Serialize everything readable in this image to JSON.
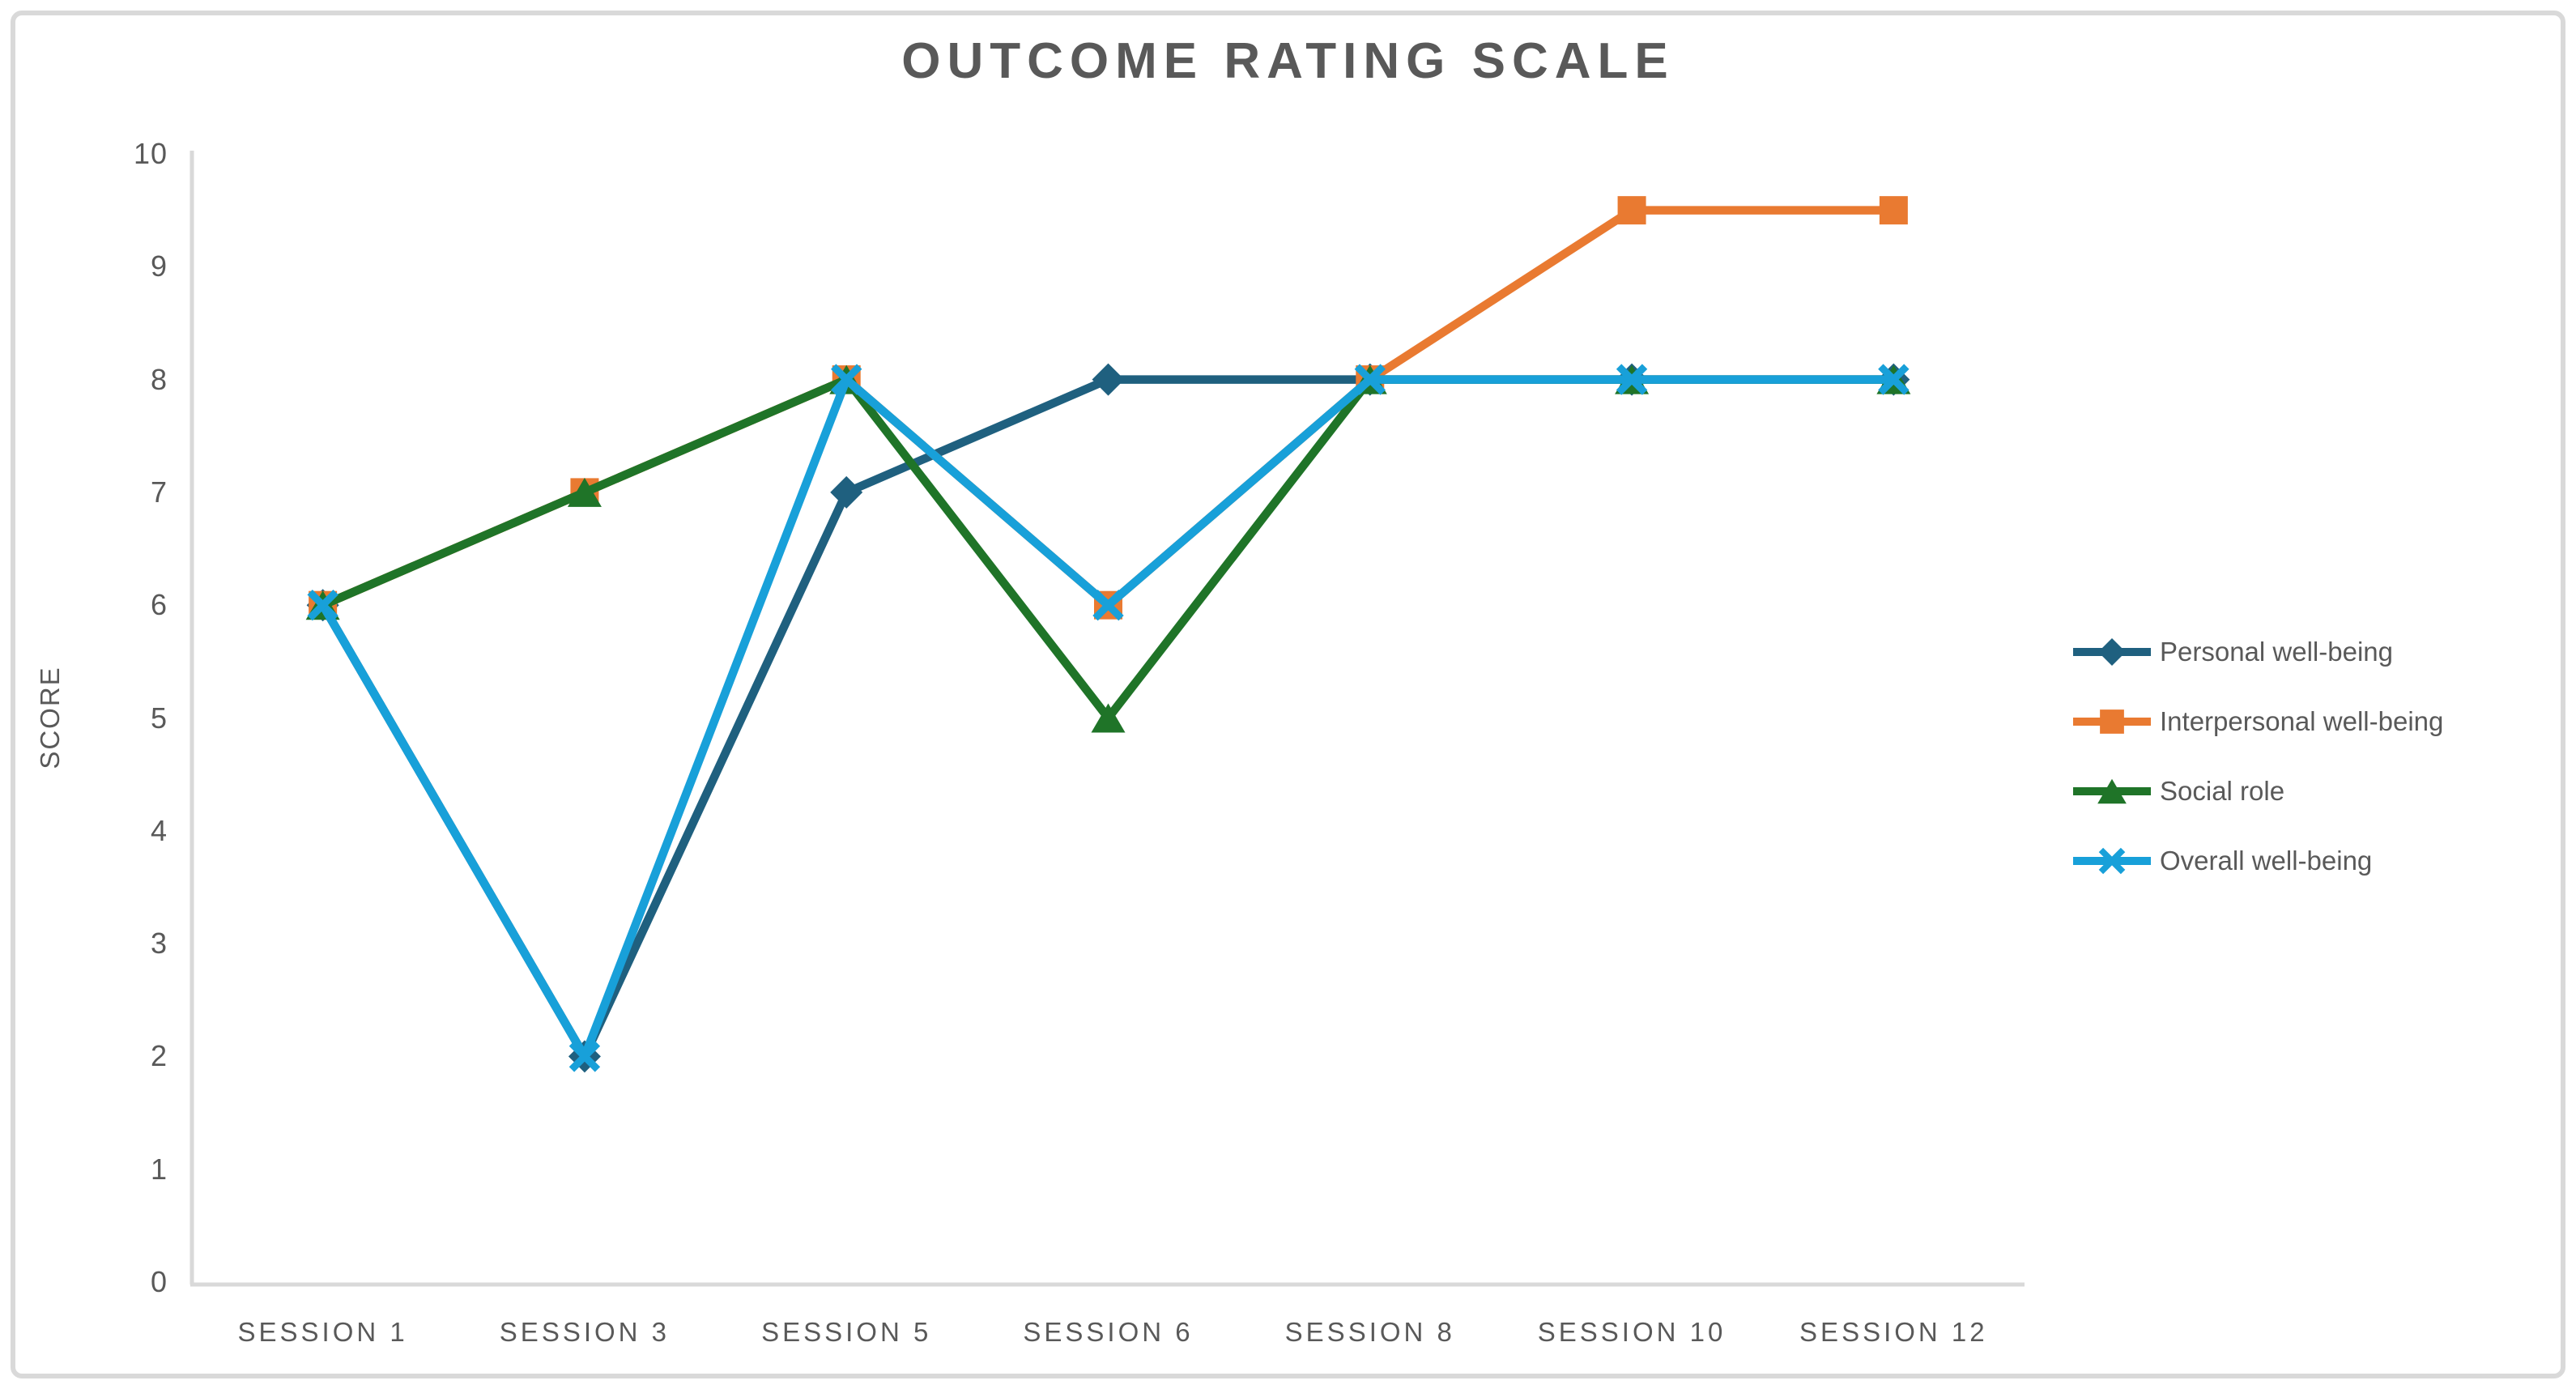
{
  "chart_data": {
    "type": "line",
    "title": "OUTCOME RATING SCALE",
    "xlabel": "",
    "ylabel": "SCORE",
    "categories": [
      "SESSION 1",
      "SESSION 3",
      "SESSION 5",
      "SESSION 6",
      "SESSION 8",
      "SESSION 10",
      "SESSION 12"
    ],
    "yticks": [
      0,
      1,
      2,
      3,
      4,
      5,
      6,
      7,
      8,
      9,
      10
    ],
    "ylim": [
      0,
      10
    ],
    "grid": false,
    "legend_position": "right",
    "background": "#FFFFFF",
    "border_color": "#D9D9D9",
    "axis_color": "#D9D9D9",
    "text_color": "#595959",
    "series": [
      {
        "name": "Personal well-being",
        "marker": "diamond",
        "color": "#1F607F",
        "values": [
          6,
          2,
          7,
          8,
          8,
          8,
          8
        ]
      },
      {
        "name": "Interpersonal well-being",
        "marker": "square",
        "color": "#E97A31",
        "values": [
          6,
          7,
          8,
          6,
          8,
          9.5,
          9.5
        ]
      },
      {
        "name": "Social role",
        "marker": "triangle",
        "color": "#1F7428",
        "values": [
          6,
          7,
          8,
          5,
          8,
          8,
          8
        ]
      },
      {
        "name": "Overall well-being",
        "marker": "x",
        "color": "#18A0D9",
        "values": [
          6,
          2,
          8,
          6,
          8,
          8,
          8
        ]
      }
    ]
  }
}
